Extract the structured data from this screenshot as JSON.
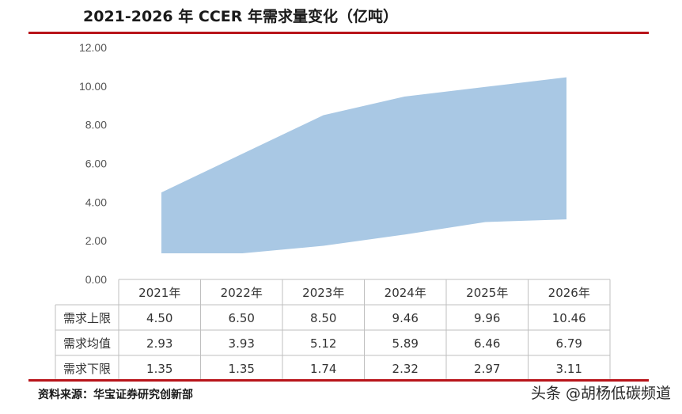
{
  "title": "2021-2026 年 CCER 年需求量变化（亿吨）",
  "source": "资料来源：华宝证券研究创新部",
  "watermark": "头条 @胡杨低碳频道",
  "colors": {
    "area": "#a9c8e4",
    "rule": "#b8141a",
    "grid": "#bfbfbf"
  },
  "chart_data": {
    "type": "area",
    "categories": [
      "2021年",
      "2022年",
      "2023年",
      "2024年",
      "2025年",
      "2026年"
    ],
    "ylim": [
      0,
      12
    ],
    "yticks": [
      "0.00",
      "2.00",
      "4.00",
      "6.00",
      "8.00",
      "10.00",
      "12.00"
    ],
    "series": [
      {
        "name": "需求上限",
        "values": [
          4.5,
          6.5,
          8.5,
          9.46,
          9.96,
          10.46
        ]
      },
      {
        "name": "需求均值",
        "values": [
          2.93,
          3.93,
          5.12,
          5.89,
          6.46,
          6.79
        ]
      },
      {
        "name": "需求下限",
        "values": [
          1.35,
          1.35,
          1.74,
          2.32,
          2.97,
          3.11
        ]
      }
    ],
    "table": {
      "header": [
        "2021年",
        "2022年",
        "2023年",
        "2024年",
        "2025年",
        "2026年"
      ],
      "rows": [
        {
          "label": "需求上限",
          "cells": [
            "4.50",
            "6.50",
            "8.50",
            "9.46",
            "9.96",
            "10.46"
          ]
        },
        {
          "label": "需求均值",
          "cells": [
            "2.93",
            "3.93",
            "5.12",
            "5.89",
            "6.46",
            "6.79"
          ]
        },
        {
          "label": "需求下限",
          "cells": [
            "1.35",
            "1.35",
            "1.74",
            "2.32",
            "2.97",
            "3.11"
          ]
        }
      ]
    }
  }
}
